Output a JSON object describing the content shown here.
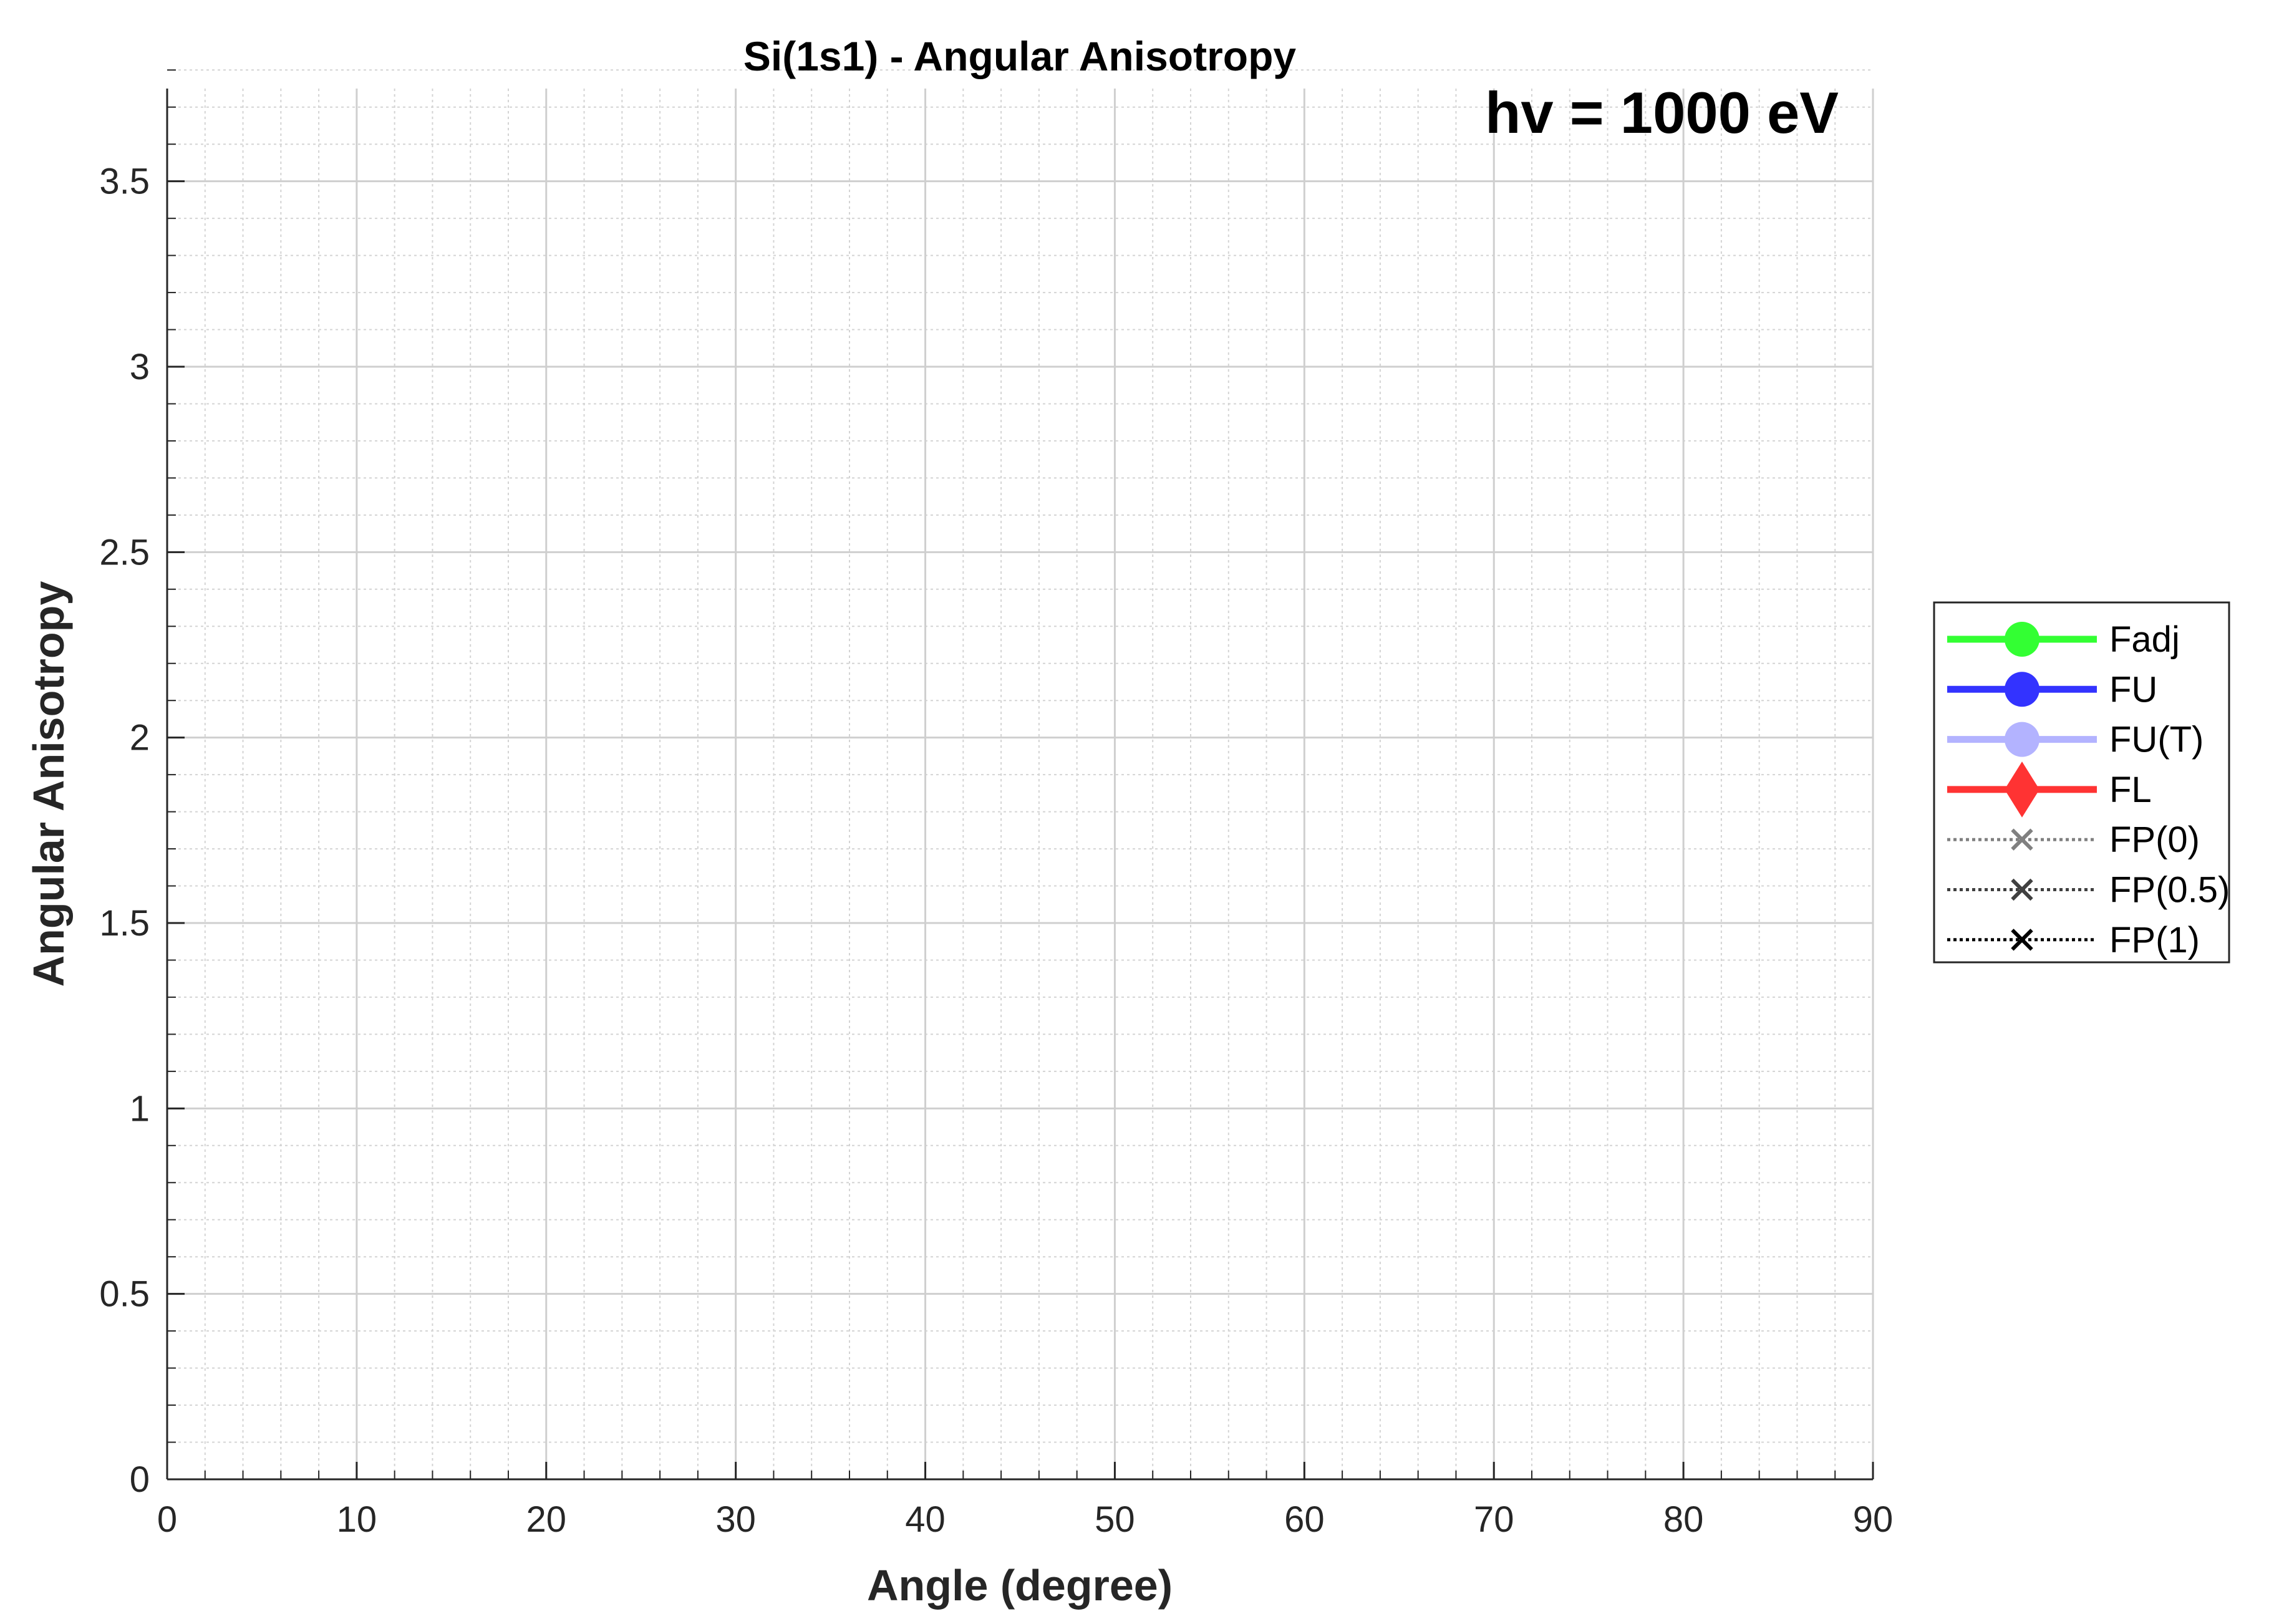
{
  "chart_data": {
    "type": "line",
    "title": "Si(1s1) - Angular Anisotropy",
    "annotation": "hv = 1000 eV",
    "xlabel": "Angle (degree)",
    "ylabel": "Angular Anisotropy",
    "xlim": [
      0,
      90
    ],
    "ylim": [
      0,
      3.75
    ],
    "xticks": [
      0,
      10,
      20,
      30,
      40,
      50,
      60,
      70,
      80,
      90
    ],
    "xtick_labels": [
      "0",
      "10",
      "20",
      "30",
      "40",
      "50",
      "60",
      "70",
      "80",
      "90"
    ],
    "yticks": [
      0,
      0.5,
      1,
      1.5,
      2,
      2.5,
      3,
      3.5
    ],
    "ytick_labels": [
      "0",
      "0.5",
      "1",
      "1.5",
      "2",
      "2.5",
      "3",
      "3.5"
    ],
    "x_minor_step": 2,
    "y_minor_step": 0.1,
    "grid": true,
    "minor_grid": true,
    "legend_position": "right",
    "series": [
      {
        "name": "Fadj",
        "color": "#33ff33",
        "line": "solid",
        "marker": "circle",
        "x": [],
        "y": []
      },
      {
        "name": "FU",
        "color": "#3333ff",
        "line": "solid",
        "marker": "circle",
        "x": [],
        "y": []
      },
      {
        "name": "FU(T)",
        "color": "#b3b3ff",
        "line": "solid",
        "marker": "circle",
        "x": [],
        "y": []
      },
      {
        "name": "FL",
        "color": "#ff3333",
        "line": "solid",
        "marker": "diamond",
        "x": [],
        "y": []
      },
      {
        "name": "FP(0)",
        "color": "#808080",
        "line": "dotted",
        "marker": "x",
        "x": [],
        "y": []
      },
      {
        "name": "FP(0.5)",
        "color": "#404040",
        "line": "dotted",
        "marker": "x",
        "x": [],
        "y": []
      },
      {
        "name": "FP(1)",
        "color": "#000000",
        "line": "dotted",
        "marker": "x",
        "x": [],
        "y": []
      }
    ]
  }
}
